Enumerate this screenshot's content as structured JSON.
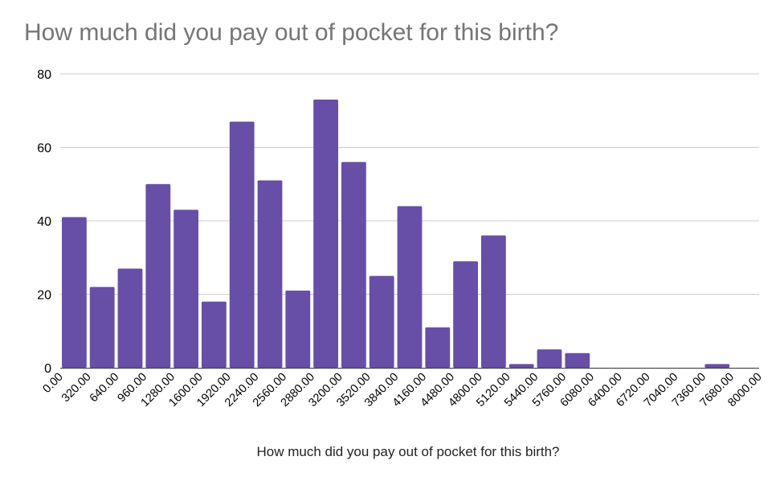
{
  "chart_data": {
    "type": "bar",
    "title": "How much did you pay out of pocket for this birth?",
    "xlabel": "How much did you pay out of pocket for this birth?",
    "ylabel": "",
    "ylim": [
      0,
      80
    ],
    "yticks": [
      "0",
      "20",
      "40",
      "60",
      "80"
    ],
    "x_tick_labels": [
      "0.00",
      "320.00",
      "640.00",
      "960.00",
      "1280.00",
      "1600.00",
      "1920.00",
      "2240.00",
      "2560.00",
      "2880.00",
      "3200.00",
      "3520.00",
      "3840.00",
      "4160.00",
      "4480.00",
      "4800.00",
      "5120.00",
      "5440.00",
      "5760.00",
      "6080.00",
      "6400.00",
      "6720.00",
      "7040.00",
      "7360.00",
      "7680.00",
      "8000.00"
    ],
    "bins": [
      {
        "start": 0,
        "end": 320,
        "count": 41
      },
      {
        "start": 320,
        "end": 640,
        "count": 22
      },
      {
        "start": 640,
        "end": 960,
        "count": 27
      },
      {
        "start": 960,
        "end": 1280,
        "count": 50
      },
      {
        "start": 1280,
        "end": 1600,
        "count": 43
      },
      {
        "start": 1600,
        "end": 1920,
        "count": 18
      },
      {
        "start": 1920,
        "end": 2240,
        "count": 67
      },
      {
        "start": 2240,
        "end": 2560,
        "count": 51
      },
      {
        "start": 2560,
        "end": 2880,
        "count": 21
      },
      {
        "start": 2880,
        "end": 3200,
        "count": 73
      },
      {
        "start": 3200,
        "end": 3520,
        "count": 56
      },
      {
        "start": 3520,
        "end": 3840,
        "count": 25
      },
      {
        "start": 3840,
        "end": 4160,
        "count": 44
      },
      {
        "start": 4160,
        "end": 4480,
        "count": 11
      },
      {
        "start": 4480,
        "end": 4800,
        "count": 29
      },
      {
        "start": 4800,
        "end": 5120,
        "count": 36
      },
      {
        "start": 5120,
        "end": 5440,
        "count": 1
      },
      {
        "start": 5440,
        "end": 5760,
        "count": 5
      },
      {
        "start": 5760,
        "end": 6080,
        "count": 4
      },
      {
        "start": 6080,
        "end": 6400,
        "count": 0
      },
      {
        "start": 6400,
        "end": 6720,
        "count": 0
      },
      {
        "start": 6720,
        "end": 7040,
        "count": 0
      },
      {
        "start": 7040,
        "end": 7360,
        "count": 0
      },
      {
        "start": 7360,
        "end": 7680,
        "count": 1
      },
      {
        "start": 7680,
        "end": 8000,
        "count": 0
      }
    ],
    "bar_color": "#674ea7",
    "grid": true,
    "legend": "none"
  }
}
